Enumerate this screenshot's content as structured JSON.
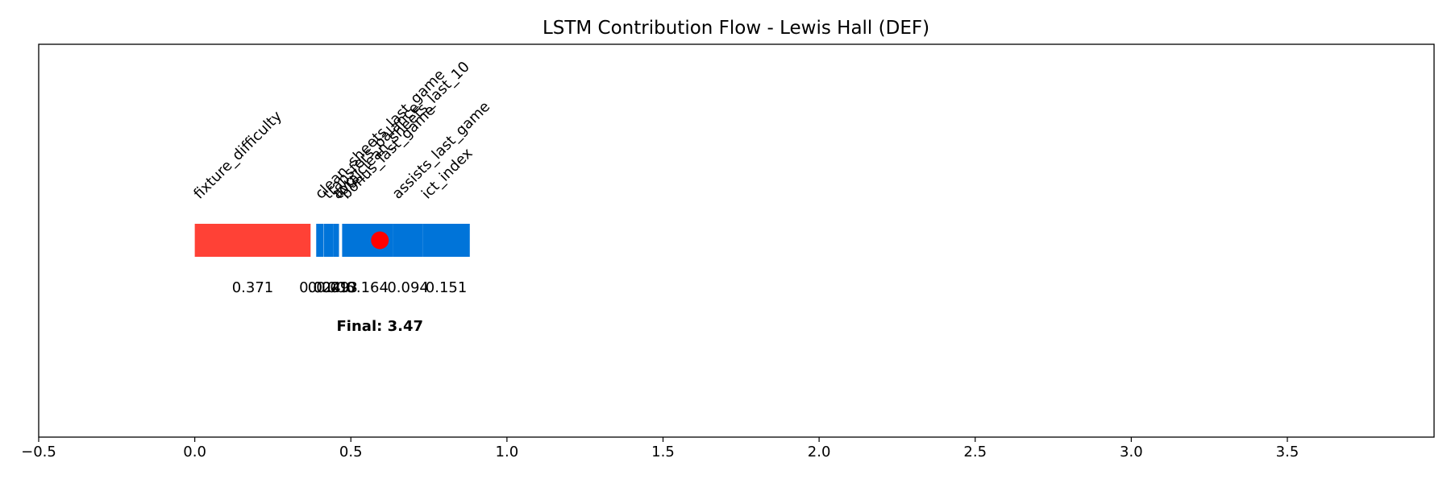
{
  "chart_data": {
    "type": "bar",
    "orientation": "horizontal-stacked",
    "title": "LSTM Contribution Flow - Lewis Hall (DEF)",
    "xlabel": "",
    "ylabel": "",
    "xlim": [
      -0.5,
      3.97
    ],
    "xticks": [
      "−0.5",
      "0.0",
      "0.5",
      "1.0",
      "1.5",
      "2.0",
      "2.5",
      "3.0",
      "3.5"
    ],
    "xtick_values": [
      -0.5,
      0.0,
      0.5,
      1.0,
      1.5,
      2.0,
      2.5,
      3.0,
      3.5
    ],
    "grid": false,
    "colors": {
      "positive": "#ff4136",
      "negative": "#0074d9",
      "marker": "#ff0000"
    },
    "segments": [
      {
        "feature": "fixture_difficulty",
        "start": 0.0,
        "value": 0.371,
        "label": "0.371",
        "color": "#ff4136"
      },
      {
        "feature": "clean_sheets_last_game",
        "start": 0.389,
        "value": -0.024,
        "label": "0.024",
        "color": "#0074d9"
      },
      {
        "feature": "transfers_balance",
        "start": 0.414,
        "value": -0.029,
        "label": "0.029",
        "color": "#0074d9"
      },
      {
        "feature": "avg_clean_sheets_last_10",
        "start": 0.443,
        "value": -0.006,
        "label": "0.006",
        "color": "#0074d9"
      },
      {
        "feature": "total",
        "start": 0.449,
        "value": -0.013,
        "label": "0.013",
        "color": "#0074d9"
      },
      {
        "feature": "bonus_last_game",
        "start": 0.472,
        "value": -0.164,
        "label": "0.164",
        "color": "#0074d9"
      },
      {
        "feature": "assists_last_game",
        "start": 0.636,
        "value": -0.094,
        "label": "0.094",
        "color": "#0074d9"
      },
      {
        "feature": "ict_index",
        "start": 0.73,
        "value": -0.151,
        "label": "0.151",
        "color": "#0074d9"
      }
    ],
    "bar_extent": [
      0.0,
      0.881
    ],
    "marker_x": 0.593,
    "final_label": "Final: 3.47"
  }
}
